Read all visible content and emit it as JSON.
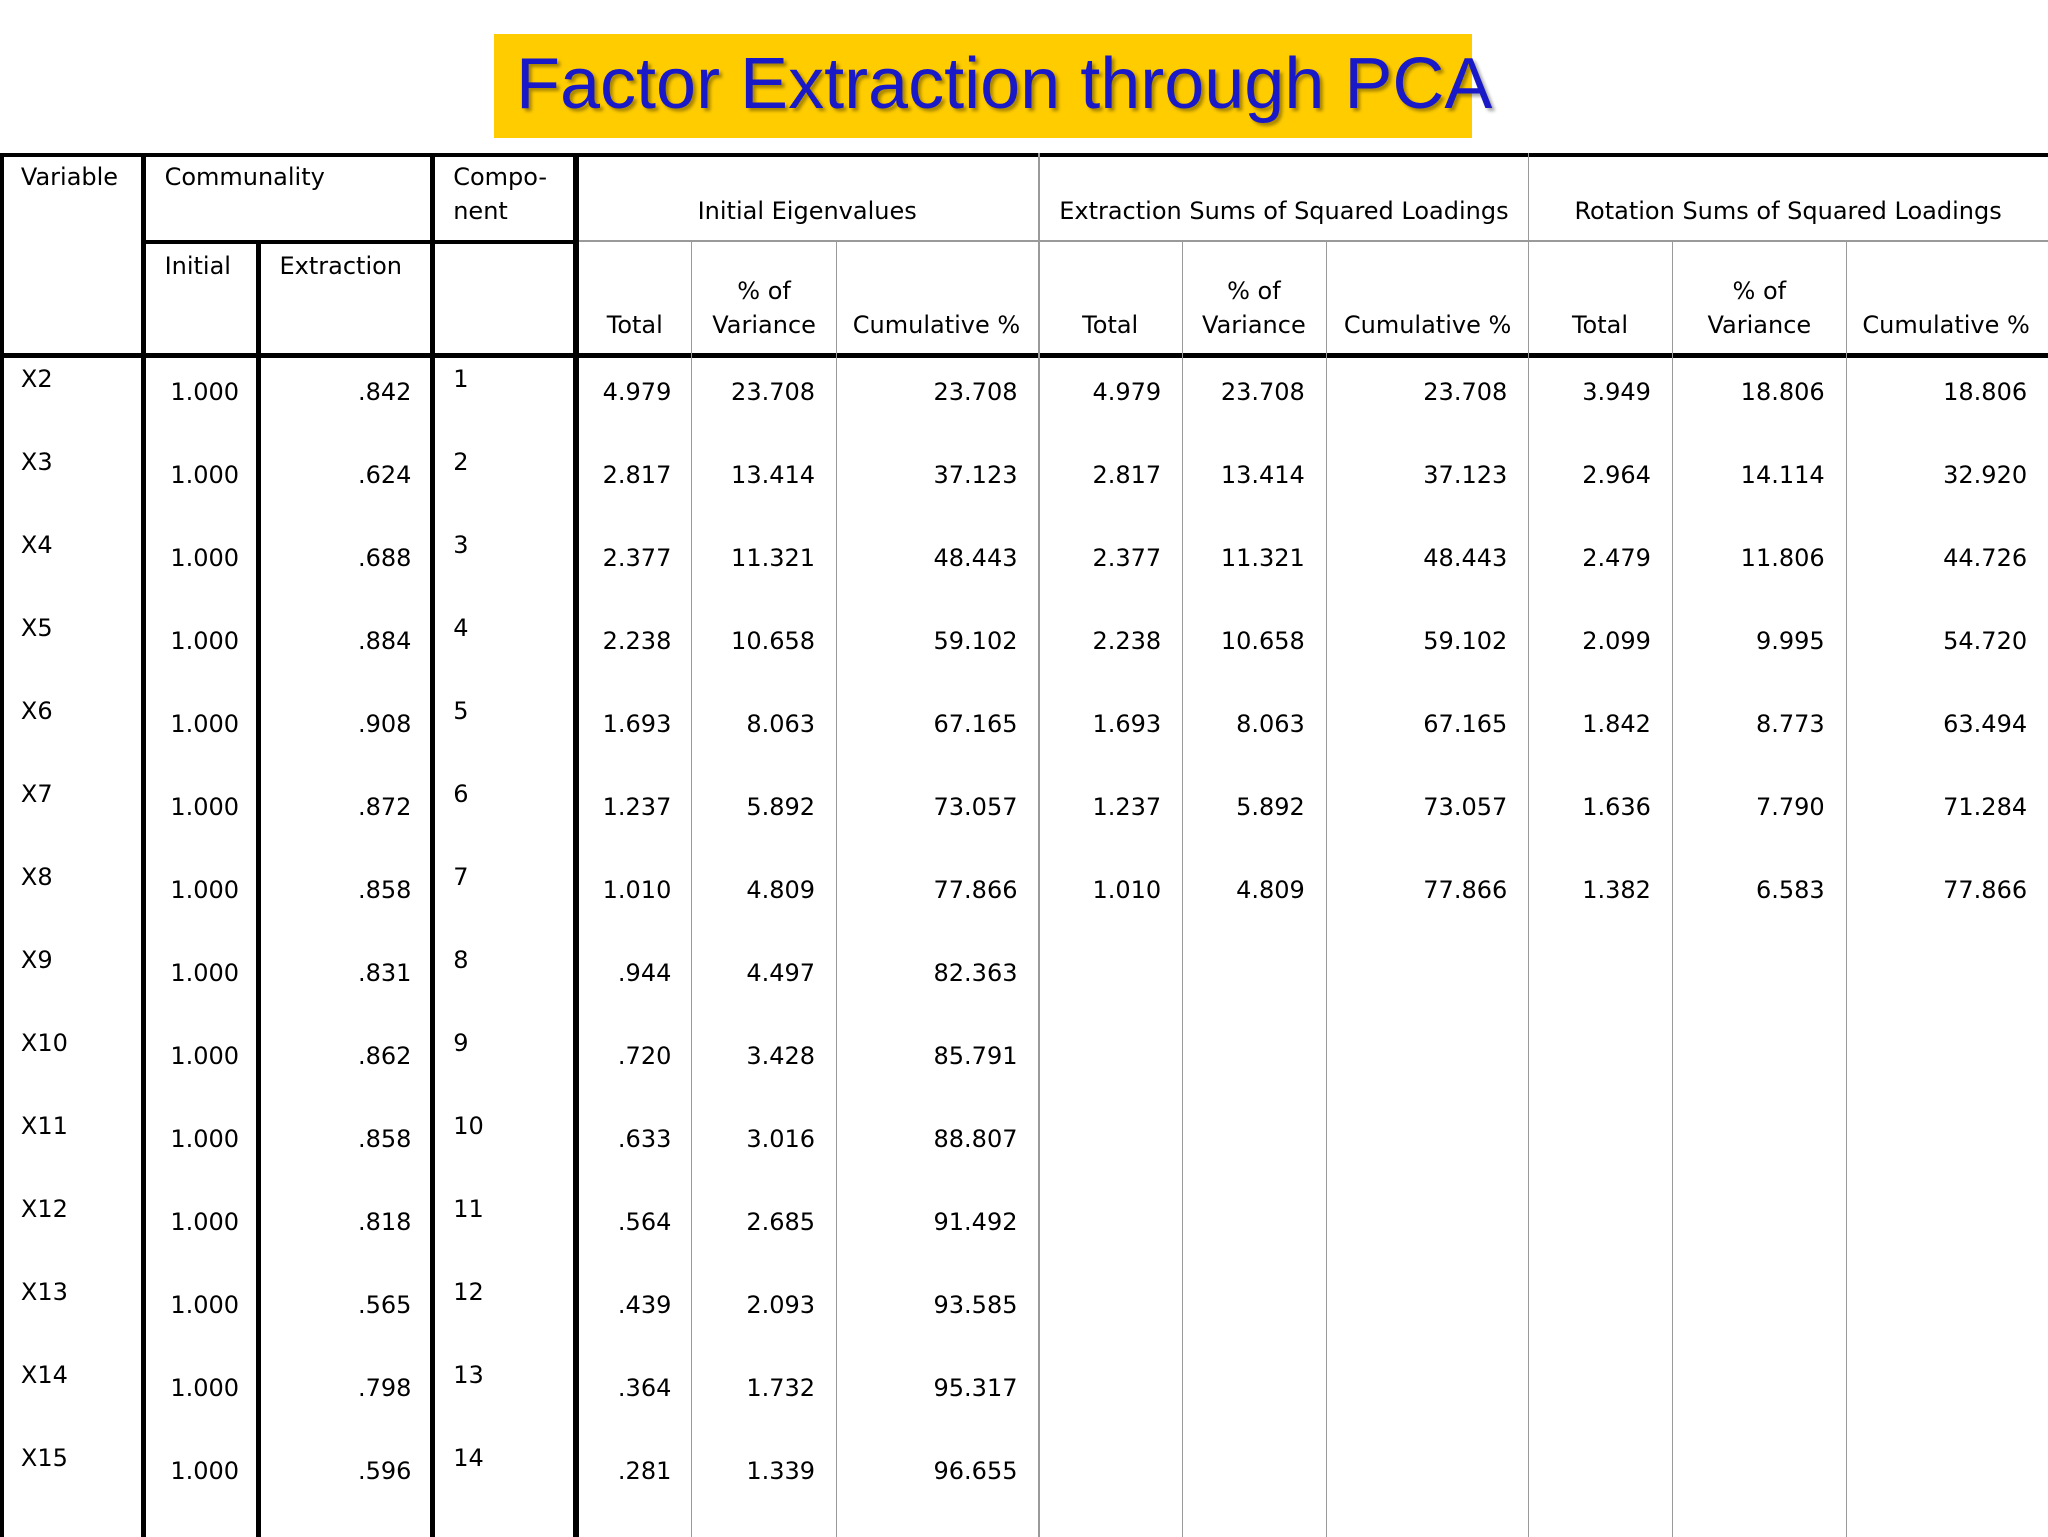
{
  "title": "Factor Extraction through PCA",
  "colors": {
    "title_bg": "#ffcc00",
    "title_text": "#1919c8"
  },
  "headers": {
    "variable": "Variable",
    "communality": "Communality",
    "component_1": "Compo-",
    "component_2": "nent",
    "initial_eigenvalues": "Initial Eigenvalues",
    "extraction_sums": "Extraction Sums of Squared Loadings",
    "rotation_sums": "Rotation Sums of Squared Loadings",
    "initial": "Initial",
    "extraction": "Extraction",
    "total": "Total",
    "pct_var_1": "% of",
    "pct_var_2": "Variance",
    "cumulative": "Cumulative %"
  },
  "rows": [
    {
      "variable": "X2",
      "initial": "1.000",
      "extraction": ".842",
      "component": "1",
      "ie_total": "4.979",
      "ie_pct": "23.708",
      "ie_cum": "23.708",
      "es_total": "4.979",
      "es_pct": "23.708",
      "es_cum": "23.708",
      "rs_total": "3.949",
      "rs_pct": "18.806",
      "rs_cum": "18.806"
    },
    {
      "variable": "X3",
      "initial": "1.000",
      "extraction": ".624",
      "component": "2",
      "ie_total": "2.817",
      "ie_pct": "13.414",
      "ie_cum": "37.123",
      "es_total": "2.817",
      "es_pct": "13.414",
      "es_cum": "37.123",
      "rs_total": "2.964",
      "rs_pct": "14.114",
      "rs_cum": "32.920"
    },
    {
      "variable": "X4",
      "initial": "1.000",
      "extraction": ".688",
      "component": "3",
      "ie_total": "2.377",
      "ie_pct": "11.321",
      "ie_cum": "48.443",
      "es_total": "2.377",
      "es_pct": "11.321",
      "es_cum": "48.443",
      "rs_total": "2.479",
      "rs_pct": "11.806",
      "rs_cum": "44.726"
    },
    {
      "variable": "X5",
      "initial": "1.000",
      "extraction": ".884",
      "component": "4",
      "ie_total": "2.238",
      "ie_pct": "10.658",
      "ie_cum": "59.102",
      "es_total": "2.238",
      "es_pct": "10.658",
      "es_cum": "59.102",
      "rs_total": "2.099",
      "rs_pct": "9.995",
      "rs_cum": "54.720"
    },
    {
      "variable": "X6",
      "initial": "1.000",
      "extraction": ".908",
      "component": "5",
      "ie_total": "1.693",
      "ie_pct": "8.063",
      "ie_cum": "67.165",
      "es_total": "1.693",
      "es_pct": "8.063",
      "es_cum": "67.165",
      "rs_total": "1.842",
      "rs_pct": "8.773",
      "rs_cum": "63.494"
    },
    {
      "variable": "X7",
      "initial": "1.000",
      "extraction": ".872",
      "component": "6",
      "ie_total": "1.237",
      "ie_pct": "5.892",
      "ie_cum": "73.057",
      "es_total": "1.237",
      "es_pct": "5.892",
      "es_cum": "73.057",
      "rs_total": "1.636",
      "rs_pct": "7.790",
      "rs_cum": "71.284"
    },
    {
      "variable": "X8",
      "initial": "1.000",
      "extraction": ".858",
      "component": "7",
      "ie_total": "1.010",
      "ie_pct": "4.809",
      "ie_cum": "77.866",
      "es_total": "1.010",
      "es_pct": "4.809",
      "es_cum": "77.866",
      "rs_total": "1.382",
      "rs_pct": "6.583",
      "rs_cum": "77.866"
    },
    {
      "variable": "X9",
      "initial": "1.000",
      "extraction": ".831",
      "component": "8",
      "ie_total": ".944",
      "ie_pct": "4.497",
      "ie_cum": "82.363",
      "es_total": "",
      "es_pct": "",
      "es_cum": "",
      "rs_total": "",
      "rs_pct": "",
      "rs_cum": ""
    },
    {
      "variable": "X10",
      "initial": "1.000",
      "extraction": ".862",
      "component": "9",
      "ie_total": ".720",
      "ie_pct": "3.428",
      "ie_cum": "85.791",
      "es_total": "",
      "es_pct": "",
      "es_cum": "",
      "rs_total": "",
      "rs_pct": "",
      "rs_cum": ""
    },
    {
      "variable": "X11",
      "initial": "1.000",
      "extraction": ".858",
      "component": "10",
      "ie_total": ".633",
      "ie_pct": "3.016",
      "ie_cum": "88.807",
      "es_total": "",
      "es_pct": "",
      "es_cum": "",
      "rs_total": "",
      "rs_pct": "",
      "rs_cum": ""
    },
    {
      "variable": "X12",
      "initial": "1.000",
      "extraction": ".818",
      "component": "11",
      "ie_total": ".564",
      "ie_pct": "2.685",
      "ie_cum": "91.492",
      "es_total": "",
      "es_pct": "",
      "es_cum": "",
      "rs_total": "",
      "rs_pct": "",
      "rs_cum": ""
    },
    {
      "variable": "X13",
      "initial": "1.000",
      "extraction": ".565",
      "component": "12",
      "ie_total": ".439",
      "ie_pct": "2.093",
      "ie_cum": "93.585",
      "es_total": "",
      "es_pct": "",
      "es_cum": "",
      "rs_total": "",
      "rs_pct": "",
      "rs_cum": ""
    },
    {
      "variable": "X14",
      "initial": "1.000",
      "extraction": ".798",
      "component": "13",
      "ie_total": ".364",
      "ie_pct": "1.732",
      "ie_cum": "95.317",
      "es_total": "",
      "es_pct": "",
      "es_cum": "",
      "rs_total": "",
      "rs_pct": "",
      "rs_cum": ""
    },
    {
      "variable": "X15",
      "initial": "1.000",
      "extraction": ".596",
      "component": "14",
      "ie_total": ".281",
      "ie_pct": "1.339",
      "ie_cum": "96.655",
      "es_total": "",
      "es_pct": "",
      "es_cum": "",
      "rs_total": "",
      "rs_pct": "",
      "rs_cum": ""
    }
  ]
}
